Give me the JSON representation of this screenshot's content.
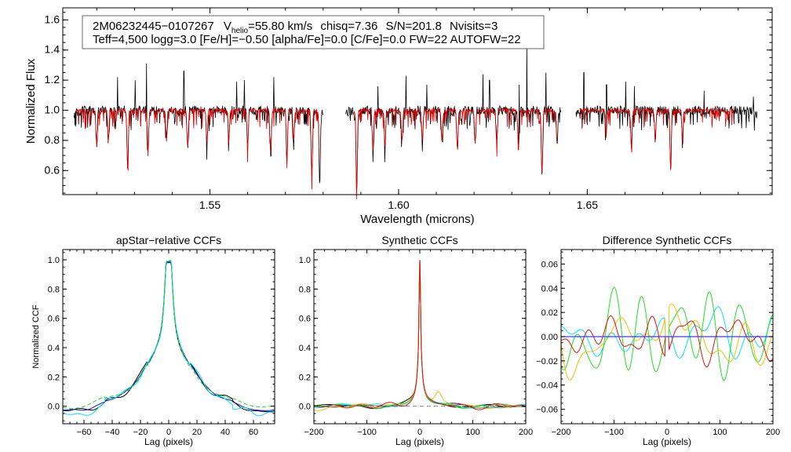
{
  "colors": {
    "axis": "#000000",
    "observed": "#000000",
    "model": "#e00000",
    "ccf_black": "#000000",
    "ccf_blue": "#1010c8",
    "ccf_cyan": "#00e5ee",
    "ccf_green": "#22dd22",
    "ccf_orange": "#f2c200",
    "ccf_red": "#e01010",
    "zero_line": "#3a3aff"
  },
  "chart_data": [
    {
      "id": "spectrum",
      "type": "line",
      "title": "",
      "xlabel": "Wavelength (microns)",
      "ylabel": "Normalized Flux",
      "xlim": [
        1.511,
        1.699
      ],
      "ylim": [
        0.44,
        1.68
      ],
      "xticks": [
        1.55,
        1.6,
        1.65
      ],
      "xtick_labels": [
        "1.55",
        "1.60",
        "1.65"
      ],
      "yticks": [
        0.6,
        0.8,
        1.0,
        1.2,
        1.4,
        1.6
      ],
      "ytick_labels": [
        "0.6",
        "0.8",
        "1.0",
        "1.2",
        "1.4",
        "1.6"
      ],
      "annotation": {
        "line1": {
          "star_id": "2M06232445−0107267",
          "v_label": "V",
          "v_sub": "helio",
          "v_value": "=55.80 km/s",
          "chisq": "chisq=7.36",
          "snr": "S/N=201.8",
          "nvisits": "Nvisits=3"
        },
        "line2": "Teff=4,500 logg=3.0 [Fe/H]=−0.50 [alpha/Fe]=0.0 [C/Fe]=0.0 FW=22 AUTOFW=22"
      },
      "chips": [
        [
          1.514,
          1.58
        ],
        [
          1.586,
          1.643
        ],
        [
          1.647,
          1.695
        ]
      ],
      "model_chips": [
        [
          1.5145,
          1.579
        ],
        [
          1.588,
          1.642
        ],
        [
          1.648,
          1.689
        ]
      ],
      "absorption_lines": [
        [
          1.52,
          0.77
        ],
        [
          1.5231,
          0.81
        ],
        [
          1.5282,
          0.62
        ],
        [
          1.5336,
          0.72
        ],
        [
          1.5385,
          0.8
        ],
        [
          1.5441,
          0.75
        ],
        [
          1.5492,
          0.78
        ],
        [
          1.555,
          0.8
        ],
        [
          1.56,
          0.77
        ],
        [
          1.5661,
          0.72
        ],
        [
          1.5704,
          0.66
        ],
        [
          1.5722,
          0.8
        ],
        [
          1.577,
          0.56
        ],
        [
          1.5791,
          0.52
        ],
        [
          1.5889,
          0.49
        ],
        [
          1.5932,
          0.72
        ],
        [
          1.5964,
          0.76
        ],
        [
          1.6009,
          0.79
        ],
        [
          1.6063,
          0.8
        ],
        [
          1.6115,
          0.8
        ],
        [
          1.6156,
          0.73
        ],
        [
          1.6203,
          0.78
        ],
        [
          1.626,
          0.8
        ],
        [
          1.6318,
          0.75
        ],
        [
          1.638,
          0.57
        ],
        [
          1.642,
          0.8
        ],
        [
          1.655,
          0.82
        ],
        [
          1.6617,
          0.76
        ],
        [
          1.668,
          0.8
        ],
        [
          1.6721,
          0.6
        ],
        [
          1.6752,
          0.82
        ]
      ],
      "emission_spikes": [
        [
          1.5255,
          1.22
        ],
        [
          1.5302,
          1.2
        ],
        [
          1.5332,
          1.31
        ],
        [
          1.5431,
          1.26
        ],
        [
          1.5571,
          1.19
        ],
        [
          1.5591,
          1.2
        ],
        [
          1.5669,
          1.22
        ],
        [
          1.5815,
          1.11
        ],
        [
          1.5945,
          1.16
        ],
        [
          1.602,
          1.23
        ],
        [
          1.6075,
          1.17
        ],
        [
          1.6224,
          1.24
        ],
        [
          1.6241,
          1.2
        ],
        [
          1.632,
          1.17
        ],
        [
          1.634,
          1.42
        ],
        [
          1.639,
          1.25
        ],
        [
          1.6491,
          1.25
        ],
        [
          1.6551,
          1.17
        ],
        [
          1.6602,
          1.19
        ],
        [
          1.6625,
          1.16
        ],
        [
          1.681,
          1.13
        ],
        [
          1.694,
          1.09
        ]
      ]
    },
    {
      "id": "ccf_apstar",
      "type": "line",
      "title": "apStar−relative CCFs",
      "xlabel": "Lag (pixels)",
      "ylabel": "Normalized CCF",
      "xlim": [
        -75,
        75
      ],
      "ylim": [
        -0.12,
        1.07
      ],
      "xticks": [
        -60,
        -40,
        -20,
        0,
        20,
        40,
        60
      ],
      "xtick_labels": [
        "−60",
        "−40",
        "−20",
        "0",
        "20",
        "40",
        "60"
      ],
      "yticks": [
        0.0,
        0.2,
        0.4,
        0.6,
        0.8,
        1.0
      ],
      "ytick_labels": [
        "0.0",
        "0.2",
        "0.4",
        "0.6",
        "0.8",
        "1.0"
      ],
      "series": [
        {
          "name": "black",
          "color_key": "ccf_black",
          "seed": 3,
          "peak": 0.985,
          "offset": -0.01,
          "noise": 0.01,
          "dashed": false
        },
        {
          "name": "blue",
          "color_key": "ccf_blue",
          "seed": 5,
          "peak": 0.98,
          "offset": -0.005,
          "noise": 0.01,
          "dashed": false
        },
        {
          "name": "cyan",
          "color_key": "ccf_cyan",
          "seed": 7,
          "peak": 0.99,
          "offset": -0.03,
          "noise": 0.012,
          "dashed": false
        },
        {
          "name": "green",
          "color_key": "ccf_green",
          "seed": 11,
          "peak": 0.995,
          "offset": 0.01,
          "noise": 0.012,
          "dashed": true
        }
      ]
    },
    {
      "id": "ccf_synthetic",
      "type": "line",
      "title": "Synthetic CCFs",
      "xlabel": "Lag (pixels)",
      "ylabel": "",
      "xlim": [
        -200,
        200
      ],
      "ylim": [
        -0.12,
        1.07
      ],
      "xticks": [
        -200,
        -100,
        0,
        100,
        200
      ],
      "xtick_labels": [
        "−200",
        "−100",
        "0",
        "100",
        "200"
      ],
      "yticks": [
        0.0,
        0.2,
        0.4,
        0.6,
        0.8,
        1.0
      ],
      "ytick_labels": [
        "0.0",
        "0.2",
        "0.4",
        "0.6",
        "0.8",
        "1.0"
      ],
      "series": [
        {
          "name": "black",
          "color_key": "ccf_black",
          "seed": 13
        },
        {
          "name": "blue",
          "color_key": "ccf_blue",
          "seed": 17
        },
        {
          "name": "cyan",
          "color_key": "ccf_cyan",
          "seed": 19
        },
        {
          "name": "green",
          "color_key": "ccf_green",
          "seed": 23
        },
        {
          "name": "orange",
          "color_key": "ccf_orange",
          "seed": 29
        },
        {
          "name": "red",
          "color_key": "ccf_red",
          "seed": 31
        }
      ]
    },
    {
      "id": "ccf_difference",
      "type": "line",
      "title": "Difference Synthetic CCFs",
      "xlabel": "Lag (pixels)",
      "ylabel": "",
      "xlim": [
        -200,
        200
      ],
      "ylim": [
        -0.072,
        0.072
      ],
      "xticks": [
        -200,
        -100,
        0,
        100,
        200
      ],
      "xtick_labels": [
        "−200",
        "−100",
        "0",
        "100",
        "200"
      ],
      "yticks": [
        -0.06,
        -0.04,
        -0.02,
        0.0,
        0.02,
        0.04,
        0.06
      ],
      "ytick_labels": [
        "−0.06",
        "−0.04",
        "−0.02",
        "0.00",
        "0.02",
        "0.04",
        "0.06"
      ],
      "series": [
        {
          "name": "cyan",
          "color_key": "ccf_cyan",
          "seed": 37
        },
        {
          "name": "green",
          "color_key": "ccf_green",
          "seed": 41
        },
        {
          "name": "orange",
          "color_key": "ccf_orange",
          "seed": 43
        },
        {
          "name": "red",
          "color_key": "ccf_red",
          "seed": 47
        }
      ]
    }
  ]
}
